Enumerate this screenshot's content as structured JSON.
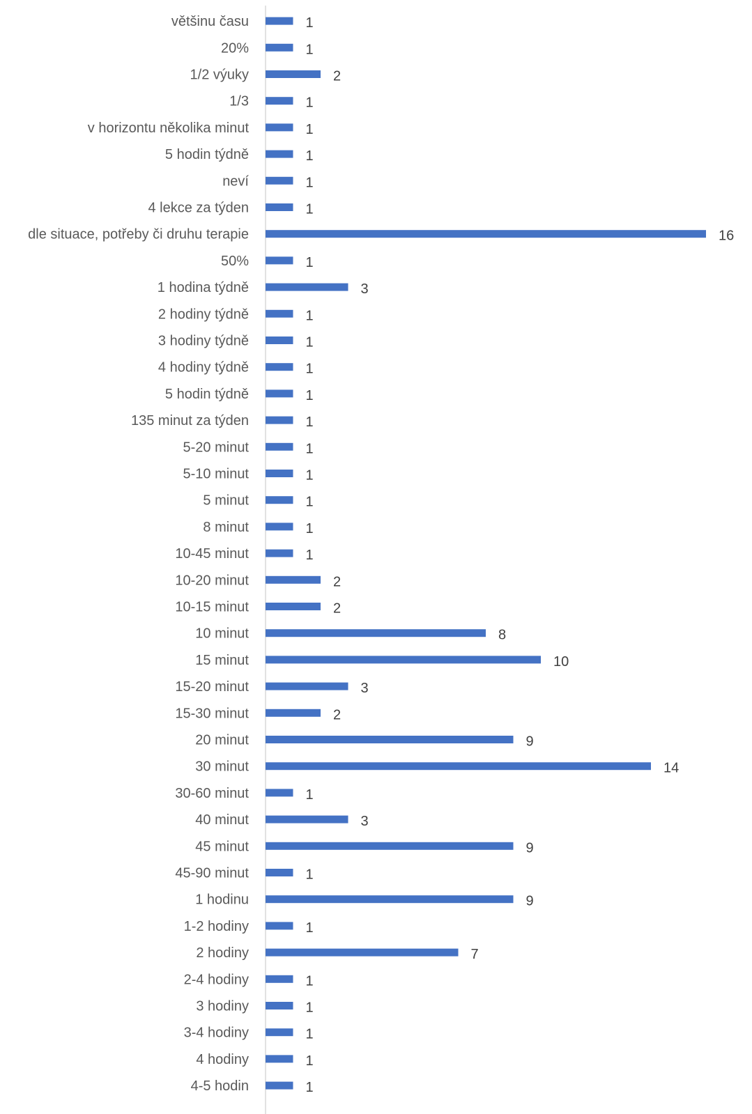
{
  "chart_data": {
    "type": "bar",
    "orientation": "horizontal",
    "title": "",
    "xlabel": "",
    "ylabel": "",
    "categories": [
      "většinu času",
      "20%",
      "1/2 výuky",
      "1/3",
      "v horizontu několika minut",
      "5 hodin týdně",
      "neví",
      "4 lekce za týden",
      "dle situace, potřeby či druhu terapie",
      "50%",
      "1 hodina týdně",
      "2 hodiny týdně",
      "3 hodiny týdně",
      "4 hodiny týdně",
      "5 hodin týdně",
      "135 minut za týden",
      "5-20 minut",
      "5-10 minut",
      "5 minut",
      "8 minut",
      "10-45 minut",
      "10-20 minut",
      "10-15 minut",
      "10 minut",
      "15 minut",
      "15-20 minut",
      "15-30 minut",
      "20 minut",
      "30 minut",
      "30-60 minut",
      "40 minut",
      "45 minut",
      "45-90 minut",
      "1 hodinu",
      "1-2 hodiny",
      "2 hodiny",
      "2-4 hodiny",
      "3 hodiny",
      "3-4 hodiny",
      "4 hodiny",
      "4-5 hodin"
    ],
    "values": [
      1,
      1,
      2,
      1,
      1,
      1,
      1,
      1,
      16,
      1,
      3,
      1,
      1,
      1,
      1,
      1,
      1,
      1,
      1,
      1,
      1,
      2,
      2,
      8,
      10,
      3,
      2,
      9,
      14,
      1,
      3,
      9,
      1,
      9,
      1,
      7,
      1,
      1,
      1,
      1,
      1
    ],
    "xlim": [
      0,
      16
    ],
    "grid": false,
    "legend": "none",
    "data_labels": true,
    "bar_color": "#4472C4"
  }
}
